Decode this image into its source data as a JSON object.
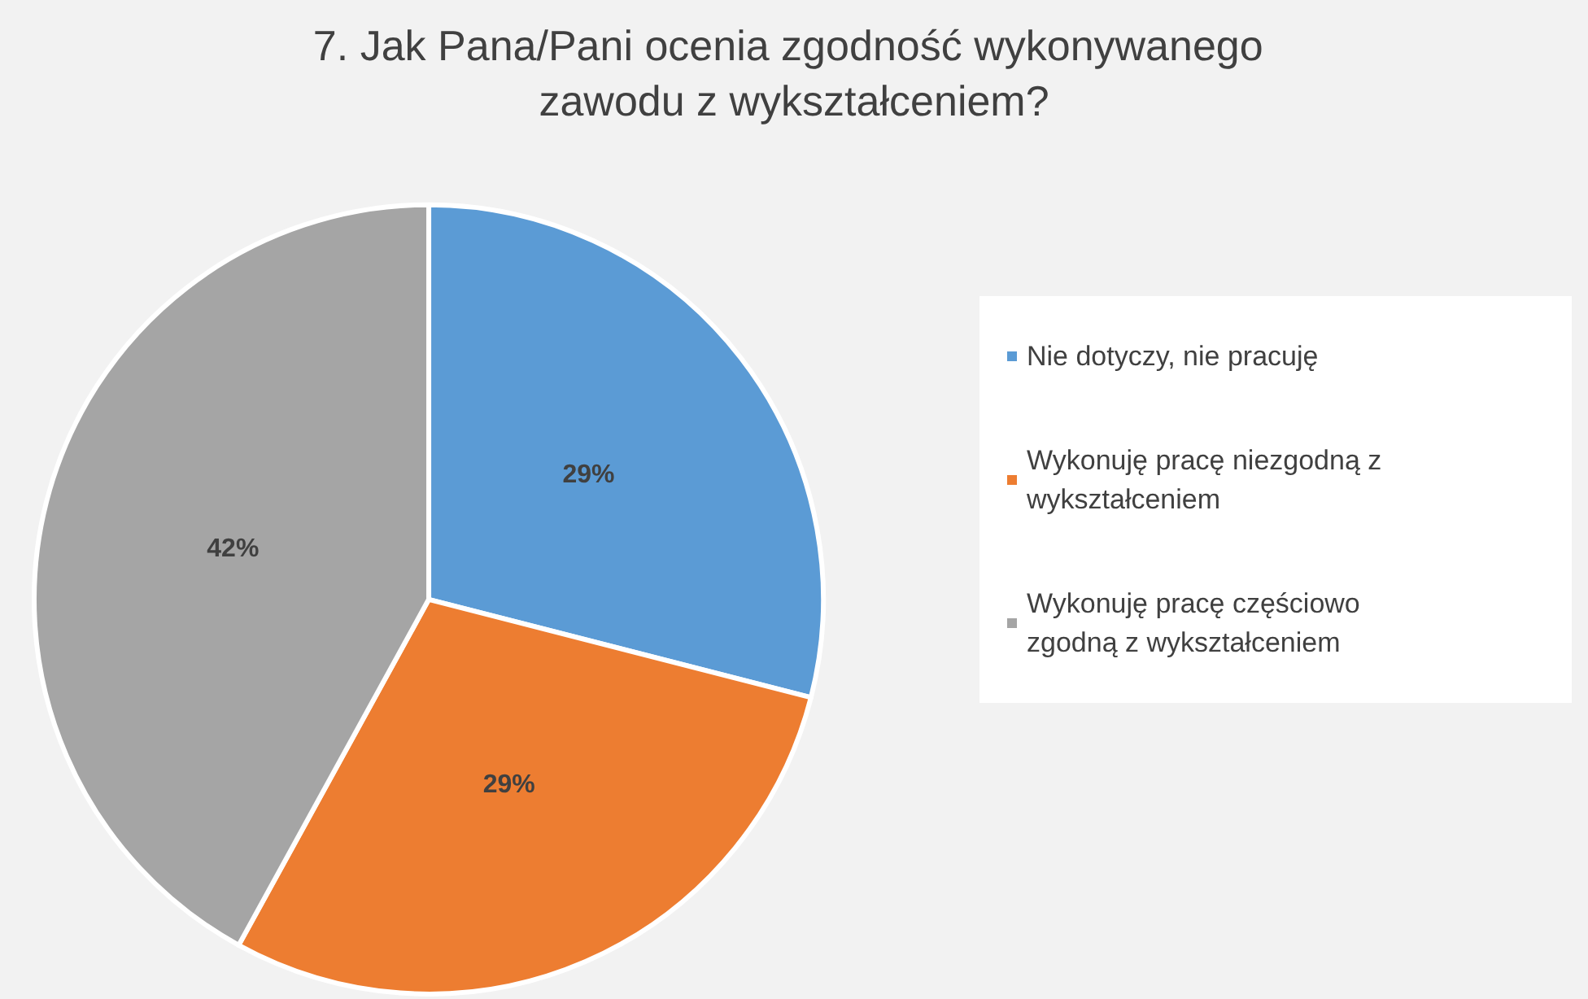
{
  "chart_data": {
    "type": "pie",
    "title": "7. Jak Pana/Pani ocenia zgodność wykonywanego zawodu z wykształceniem?",
    "categories": [
      "Nie dotyczy, nie pracuję",
      "Wykonuję pracę niezgodną z wykształceniem",
      "Wykonuję pracę częściowo zgodną z wykształceniem"
    ],
    "values": [
      29,
      29,
      42
    ],
    "colors": [
      "#5b9bd5",
      "#ed7d31",
      "#a5a5a5"
    ],
    "value_labels": [
      "29%",
      "29%",
      "42%"
    ],
    "legend": "right"
  }
}
